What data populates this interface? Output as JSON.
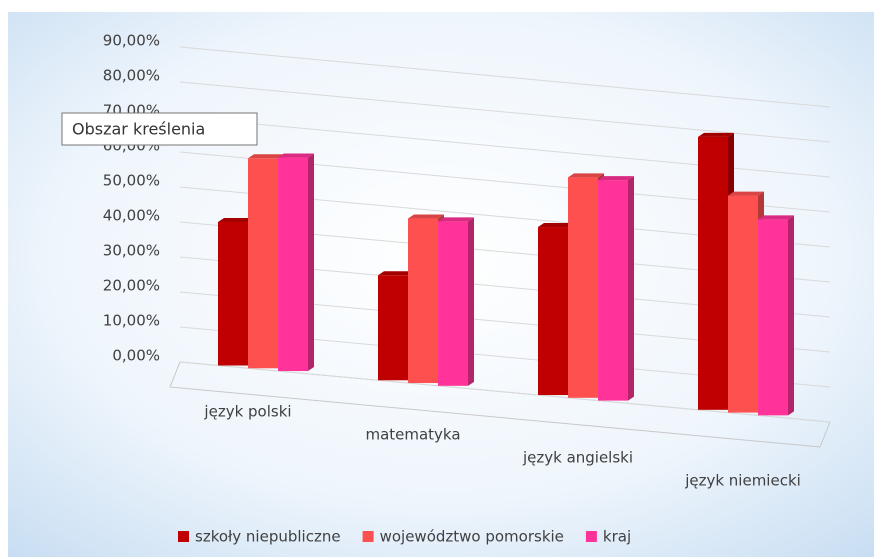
{
  "chart_data": {
    "type": "bar3d",
    "tooltip": "Obszar kreślenia",
    "categories": [
      "język polski",
      "matematyka",
      "język angielski",
      "język niemiecki"
    ],
    "series": [
      {
        "name": "szkoły niepubliczne",
        "color": "#c00000",
        "values": [
          41,
          30,
          48,
          78
        ]
      },
      {
        "name": "województwo pomorskie",
        "color": "#ff5050",
        "values": [
          60,
          47,
          63,
          62
        ]
      },
      {
        "name": "kraj",
        "color": "#ff3399",
        "values": [
          61,
          47,
          63,
          56
        ]
      }
    ],
    "ylim": [
      0,
      90
    ],
    "yticks": [
      {
        "value": 0,
        "label": "0,00%"
      },
      {
        "value": 10,
        "label": "10,00%"
      },
      {
        "value": 20,
        "label": "20,00%"
      },
      {
        "value": 30,
        "label": "30,00%"
      },
      {
        "value": 40,
        "label": "40,00%"
      },
      {
        "value": 50,
        "label": "50,00%"
      },
      {
        "value": 60,
        "label": "60,00%"
      },
      {
        "value": 70,
        "label": "70,00%"
      },
      {
        "value": 80,
        "label": "80,00%"
      },
      {
        "value": 90,
        "label": "90,00%"
      }
    ],
    "grid": true,
    "legend": "bottom"
  }
}
